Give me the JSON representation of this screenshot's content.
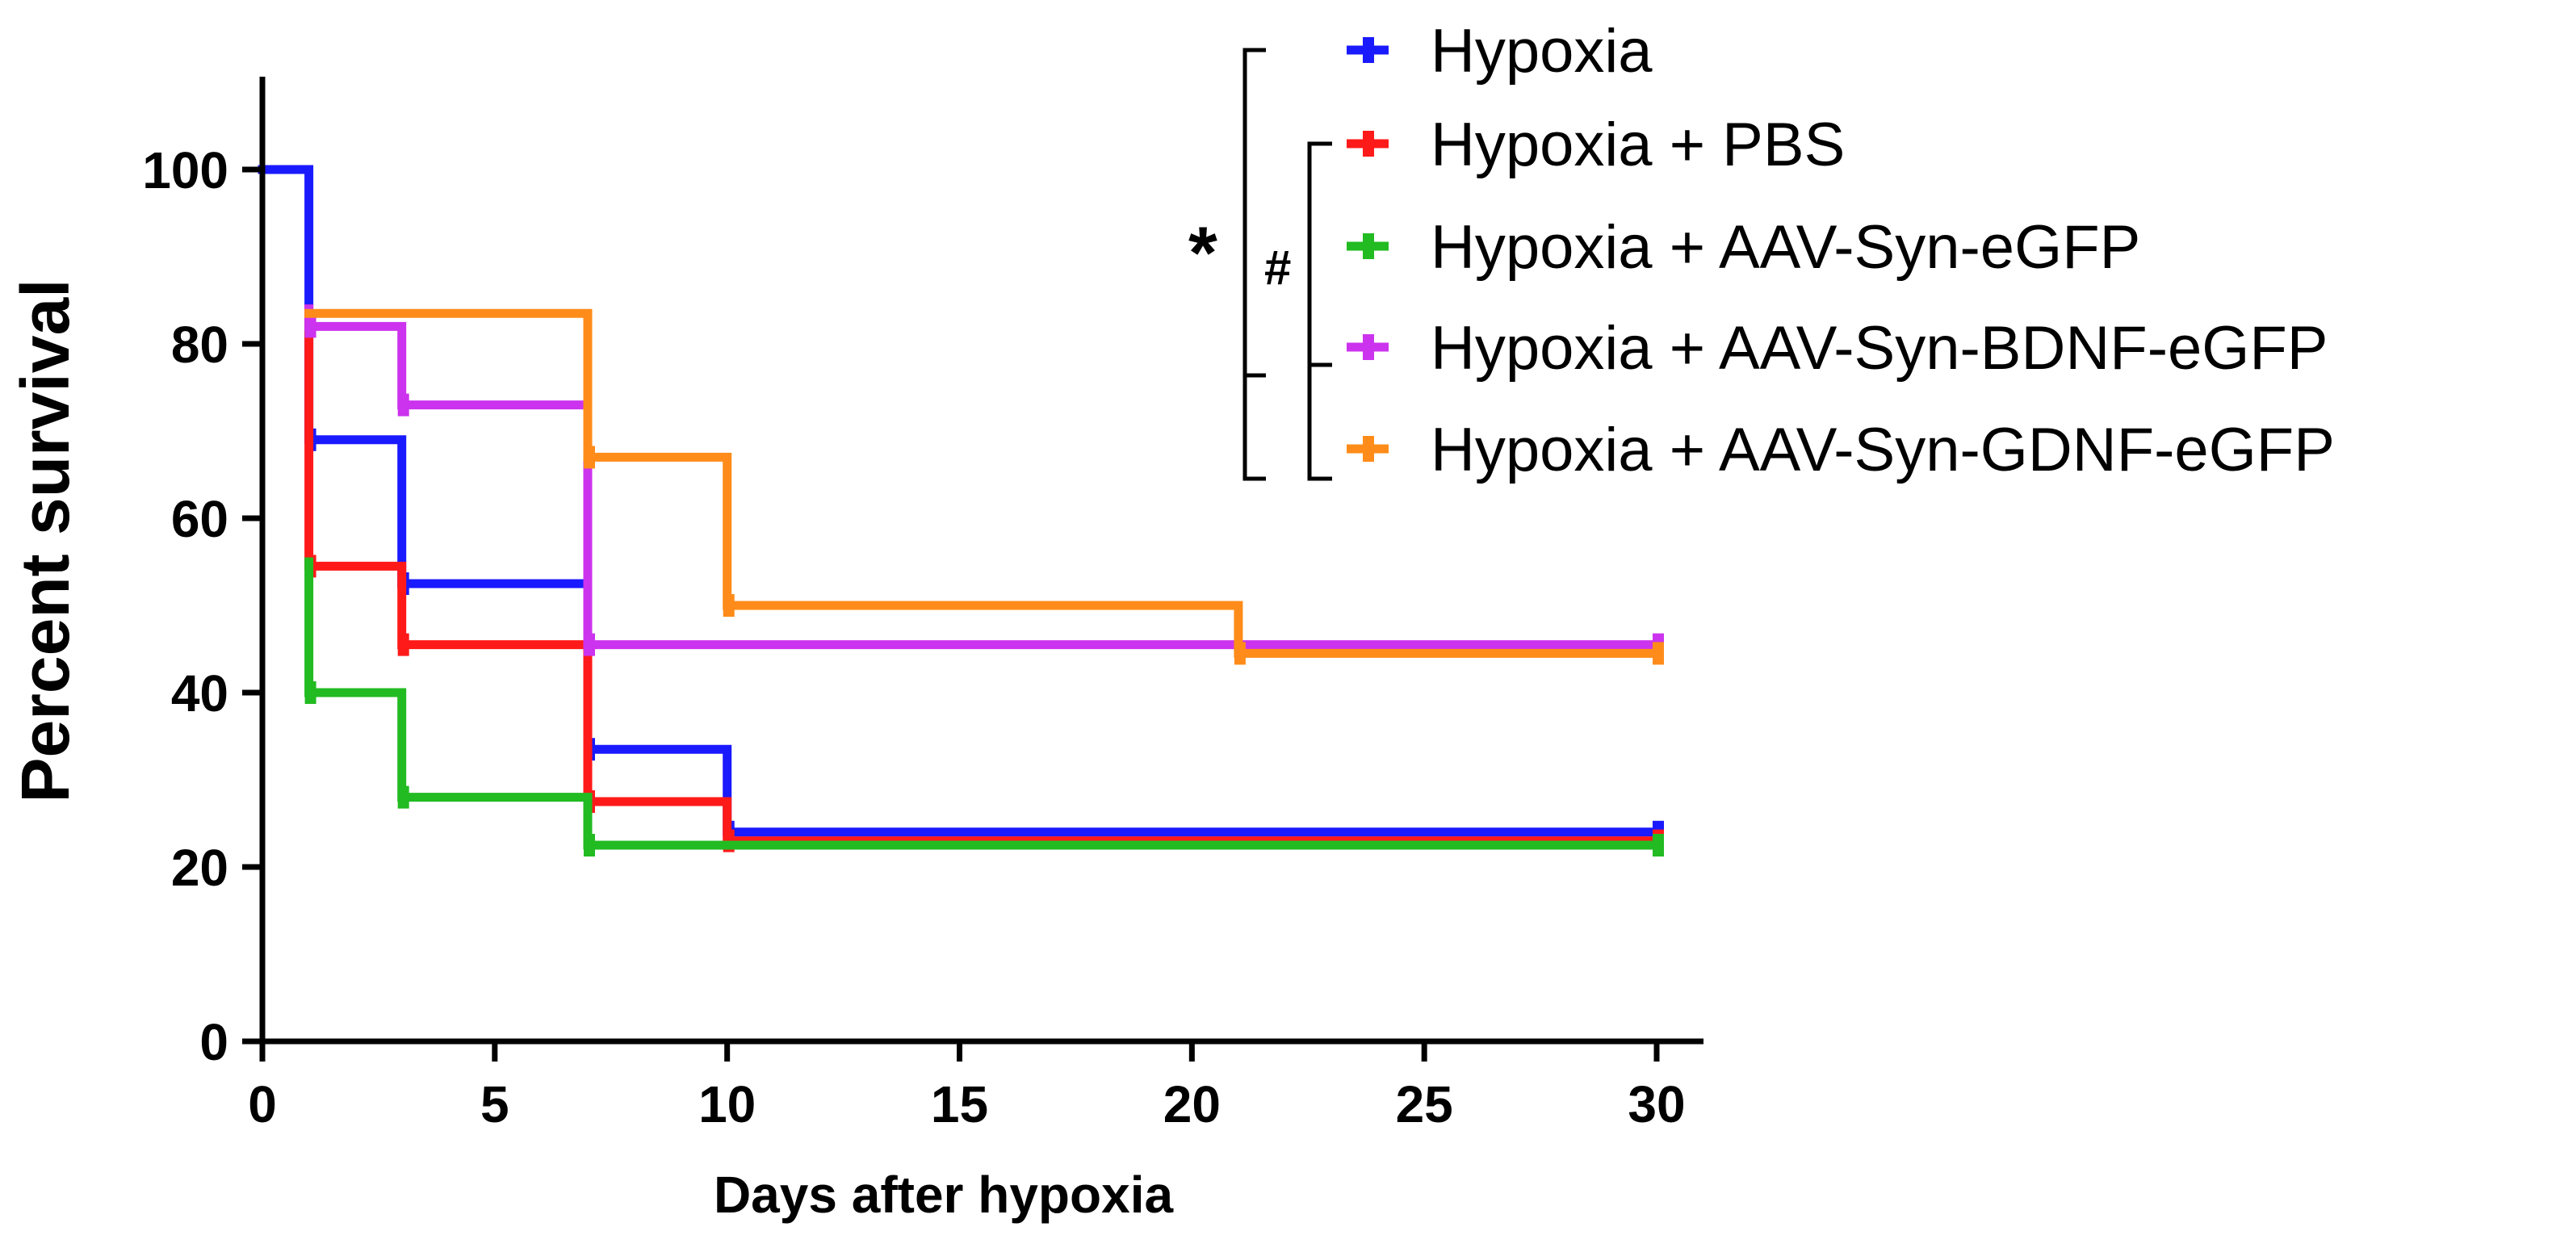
{
  "chart_data": {
    "type": "line",
    "step": true,
    "xlabel": "Days after hypoxia",
    "ylabel": "Percent survival",
    "xlim": [
      0,
      31
    ],
    "ylim": [
      0,
      110
    ],
    "xticks": [
      0,
      5,
      10,
      15,
      20,
      25,
      30
    ],
    "yticks": [
      0,
      20,
      40,
      60,
      80,
      100
    ],
    "xtick_labels": [
      "0",
      "5",
      "10",
      "15",
      "20",
      "25",
      "30"
    ],
    "ytick_labels": [
      "0",
      "20",
      "40",
      "60",
      "80",
      "100"
    ],
    "grid": false,
    "legend_position": "top-right",
    "series": [
      {
        "name": "Hypoxia",
        "color": "#1a1aff",
        "points": [
          [
            0,
            100
          ],
          [
            1,
            100
          ],
          [
            1,
            69
          ],
          [
            3,
            69
          ],
          [
            3,
            52.5
          ],
          [
            7,
            52.5
          ],
          [
            7,
            33.5
          ],
          [
            10,
            33.5
          ],
          [
            10,
            24
          ],
          [
            30,
            24
          ]
        ]
      },
      {
        "name": "Hypoxia + PBS",
        "color": "#ff1a1a",
        "points": [
          [
            1,
            84
          ],
          [
            1,
            54.5
          ],
          [
            3,
            54.5
          ],
          [
            3,
            45.5
          ],
          [
            7,
            45.5
          ],
          [
            7,
            27.5
          ],
          [
            10,
            27.5
          ],
          [
            10,
            23
          ],
          [
            30,
            23
          ]
        ]
      },
      {
        "name": "Hypoxia + AAV-Syn-eGFP",
        "color": "#22bb22",
        "points": [
          [
            1,
            55
          ],
          [
            1,
            40
          ],
          [
            3,
            40
          ],
          [
            3,
            28
          ],
          [
            7,
            28
          ],
          [
            7,
            22.5
          ],
          [
            30,
            22.5
          ]
        ]
      },
      {
        "name": "Hypoxia + AAV-Syn-BDNF-eGFP",
        "color": "#cc33ee",
        "points": [
          [
            1,
            84
          ],
          [
            1,
            82
          ],
          [
            3,
            82
          ],
          [
            3,
            73
          ],
          [
            7,
            73
          ],
          [
            7,
            45.5
          ],
          [
            30,
            45.5
          ]
        ]
      },
      {
        "name": "Hypoxia + AAV-Syn-GDNF-eGFP",
        "color": "#ff8c1a",
        "points": [
          [
            1,
            83.5
          ],
          [
            7,
            83.5
          ],
          [
            7,
            67
          ],
          [
            10,
            67
          ],
          [
            10,
            50
          ],
          [
            21,
            50
          ],
          [
            21,
            44.5
          ],
          [
            30,
            44.5
          ]
        ]
      }
    ],
    "annotations": {
      "star": "*",
      "hash": "#"
    }
  }
}
